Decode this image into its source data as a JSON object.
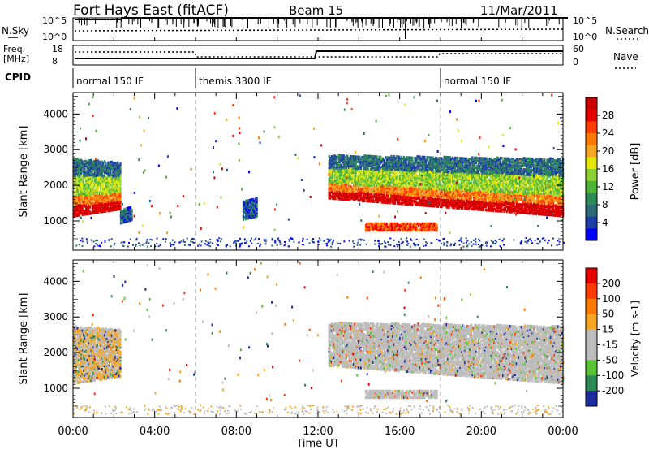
{
  "header": {
    "title": "Fort Hays East (fitACF)",
    "beam": "Beam 15",
    "date": "11/Mar/2011"
  },
  "status_panels": {
    "nsky_label": "N.Sky",
    "nsearch_label": "N.Search",
    "nsky_ticks": [
      "10^5",
      "10^0"
    ],
    "nsearch_ticks": [
      "10^5",
      "10^0"
    ],
    "freq_label_1": "Freq.",
    "freq_label_2": "[MHz]",
    "freq_ticks": [
      "18",
      "8"
    ],
    "nave_label": "Nave",
    "nave_ticks": [
      "60",
      "0"
    ],
    "cpid_label": "CPID",
    "cpid_segments": [
      {
        "label": "normal 150 IF",
        "start_h": 0,
        "end_h": 6
      },
      {
        "label": "themis 3300 IF",
        "start_h": 6,
        "end_h": 18
      },
      {
        "label": "normal 150 IF",
        "start_h": 18,
        "end_h": 24
      }
    ]
  },
  "x_axis": {
    "label": "Time UT",
    "ticks": [
      "00:00",
      "04:00",
      "08:00",
      "12:00",
      "16:00",
      "20:00",
      "00:00"
    ]
  },
  "chart_data": [
    {
      "type": "heatmap",
      "panel": "power",
      "xlabel": "Time UT",
      "ylabel": "Slant Range [km]",
      "xlim_hours": [
        0,
        24
      ],
      "ylim": [
        180,
        4600
      ],
      "yticks": [
        "1000",
        "2000",
        "3000",
        "4000"
      ],
      "colorbar": {
        "label": "Power [dB]",
        "ticks": [
          "28",
          "24",
          "20",
          "16",
          "12",
          "8",
          "4"
        ],
        "colors": [
          "#0000ff",
          "#1f3fa8",
          "#2e6b78",
          "#2e8b57",
          "#4fb33a",
          "#8fd135",
          "#e6e60a",
          "#f5a623",
          "#ff7a00",
          "#ff3b00",
          "#e60000",
          "#cc0000"
        ]
      },
      "regions": [
        {
          "t": [
            0.0,
            2.3
          ],
          "r_start": [
            1100,
            1300
          ],
          "r_end": [
            2700,
            2600
          ],
          "level": "high"
        },
        {
          "t": [
            2.3,
            2.9
          ],
          "r_start": [
            900,
            1000
          ],
          "r_end": [
            1300,
            1350
          ],
          "level": "low"
        },
        {
          "t": [
            8.3,
            9.0
          ],
          "r_start": [
            1000,
            1100
          ],
          "r_end": [
            1500,
            1600
          ],
          "level": "low"
        },
        {
          "t": [
            12.5,
            24.0
          ],
          "r_start": [
            1600,
            1100
          ],
          "r_end": [
            2800,
            2700
          ],
          "level": "high"
        },
        {
          "t": [
            14.3,
            17.8
          ],
          "r_start": [
            700,
            700
          ],
          "r_end": [
            900,
            900
          ],
          "level": "mid"
        }
      ]
    },
    {
      "type": "heatmap",
      "panel": "velocity",
      "xlabel": "Time UT",
      "ylabel": "Slant Range [km]",
      "xlim_hours": [
        0,
        24
      ],
      "ylim": [
        180,
        4600
      ],
      "yticks": [
        "1000",
        "2000",
        "3000",
        "4000"
      ],
      "colorbar": {
        "label": "Velocity [m s-1]",
        "ticks": [
          "200",
          "100",
          "50",
          "15",
          "-15",
          "-50",
          "-100",
          "-200"
        ],
        "colors": [
          "#1d2b9c",
          "#2e8b57",
          "#5bc236",
          "#bdbdbd",
          "#bdbdbd",
          "#f5a623",
          "#ff7a00",
          "#ff3b00",
          "#e60000"
        ]
      },
      "regions": [
        {
          "t": [
            0.0,
            2.3
          ],
          "r_start": [
            1100,
            1300
          ],
          "r_end": [
            2700,
            2600
          ],
          "level": "gray-orange"
        },
        {
          "t": [
            12.5,
            24.0
          ],
          "r_start": [
            1600,
            1100
          ],
          "r_end": [
            2800,
            2700
          ],
          "level": "gray"
        },
        {
          "t": [
            14.3,
            17.8
          ],
          "r_start": [
            700,
            700
          ],
          "r_end": [
            900,
            900
          ],
          "level": "gray"
        }
      ]
    }
  ]
}
